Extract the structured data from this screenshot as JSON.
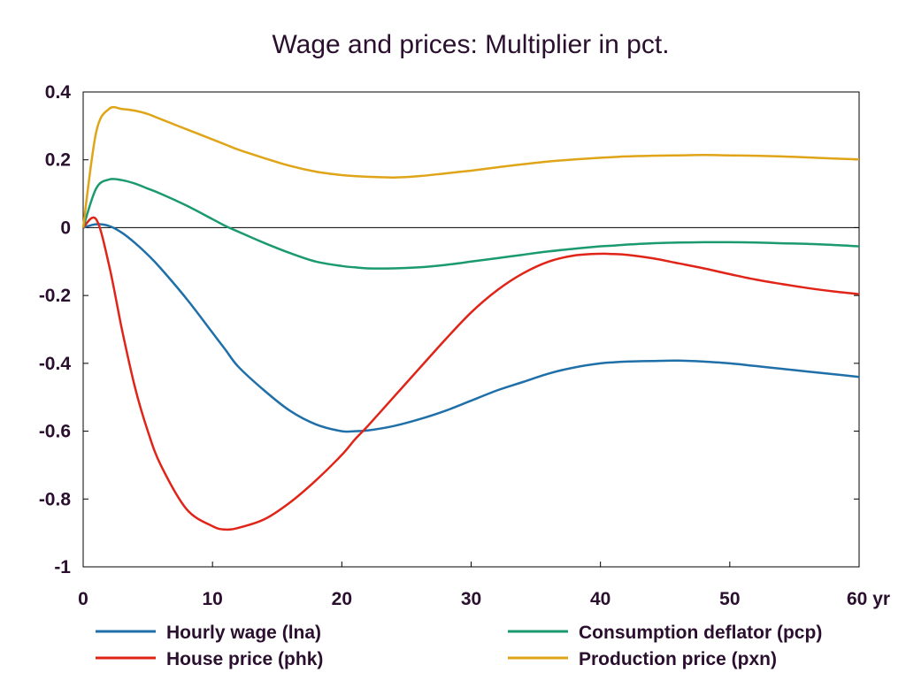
{
  "chart_data": {
    "type": "line",
    "title": "Wage and prices: Multiplier in pct.",
    "xlabel": "",
    "ylabel": "",
    "x_unit_label": "yr",
    "xlim": [
      0,
      60
    ],
    "ylim": [
      -1,
      0.4
    ],
    "x_ticks": [
      0,
      10,
      20,
      30,
      40,
      50,
      60
    ],
    "x_tick_labels": [
      "0",
      "10",
      "20",
      "30",
      "40",
      "50",
      "60 yr"
    ],
    "y_ticks": [
      0.4,
      0.2,
      0,
      -0.2,
      -0.4,
      -0.6,
      -0.8,
      -1
    ],
    "y_tick_labels": [
      "0.4",
      "0.2",
      "0",
      "-0.2",
      "-0.4",
      "-0.6",
      "-0.8",
      "-1"
    ],
    "grid": false,
    "zero_line": true,
    "legend_position": "bottom",
    "x": [
      0,
      1,
      2,
      3,
      4,
      5,
      6,
      8,
      10,
      11,
      12,
      14,
      16,
      18,
      20,
      21,
      22,
      24,
      26,
      28,
      30,
      32,
      34,
      36,
      38,
      40,
      41,
      42,
      44,
      46,
      48,
      50,
      52,
      54,
      56,
      58,
      60
    ],
    "series": [
      {
        "name": "Hourly wage (lna)",
        "color": "#1f6fa8",
        "values": [
          0,
          0.01,
          0.005,
          -0.015,
          -0.045,
          -0.08,
          -0.12,
          -0.21,
          -0.31,
          -0.36,
          -0.41,
          -0.48,
          -0.54,
          -0.58,
          -0.6,
          -0.6,
          -0.598,
          -0.585,
          -0.565,
          -0.54,
          -0.51,
          -0.48,
          -0.455,
          -0.43,
          -0.412,
          -0.4,
          -0.397,
          -0.395,
          -0.393,
          -0.392,
          -0.395,
          -0.4,
          -0.408,
          -0.416,
          -0.424,
          -0.432,
          -0.44
        ]
      },
      {
        "name": "House price (phk)",
        "color": "#e02418",
        "values": [
          0,
          0.025,
          -0.11,
          -0.3,
          -0.47,
          -0.6,
          -0.7,
          -0.83,
          -0.88,
          -0.89,
          -0.885,
          -0.86,
          -0.81,
          -0.745,
          -0.67,
          -0.625,
          -0.585,
          -0.5,
          -0.415,
          -0.33,
          -0.25,
          -0.185,
          -0.135,
          -0.1,
          -0.082,
          -0.077,
          -0.078,
          -0.08,
          -0.09,
          -0.105,
          -0.12,
          -0.137,
          -0.153,
          -0.166,
          -0.178,
          -0.188,
          -0.196
        ]
      },
      {
        "name": "Consumption deflator (pcp)",
        "color": "#1a9a6e",
        "values": [
          0,
          0.115,
          0.142,
          0.14,
          0.13,
          0.115,
          0.1,
          0.065,
          0.025,
          0.005,
          -0.012,
          -0.045,
          -0.075,
          -0.1,
          -0.113,
          -0.117,
          -0.12,
          -0.12,
          -0.117,
          -0.11,
          -0.1,
          -0.09,
          -0.08,
          -0.07,
          -0.062,
          -0.055,
          -0.053,
          -0.05,
          -0.046,
          -0.044,
          -0.043,
          -0.043,
          -0.044,
          -0.046,
          -0.048,
          -0.051,
          -0.055
        ]
      },
      {
        "name": "Production price (pxn)",
        "color": "#e0a418",
        "values": [
          0,
          0.28,
          0.35,
          0.35,
          0.345,
          0.335,
          0.32,
          0.29,
          0.26,
          0.245,
          0.23,
          0.205,
          0.182,
          0.165,
          0.155,
          0.152,
          0.15,
          0.148,
          0.152,
          0.16,
          0.168,
          0.178,
          0.187,
          0.195,
          0.201,
          0.206,
          0.208,
          0.21,
          0.212,
          0.213,
          0.214,
          0.213,
          0.212,
          0.21,
          0.207,
          0.204,
          0.201
        ]
      }
    ]
  }
}
